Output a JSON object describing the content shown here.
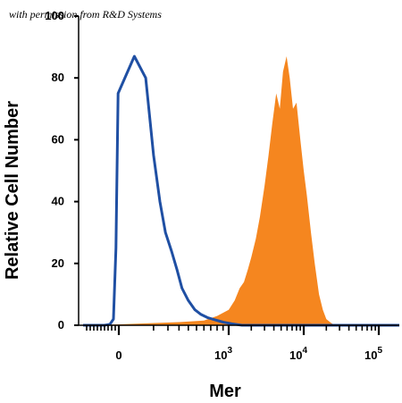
{
  "watermark": "with permission from R&D Systems",
  "chart_data": {
    "type": "area",
    "xlabel": "Mer",
    "ylabel": "Relative Cell Number",
    "ylim": [
      0,
      100
    ],
    "xscale": "biexponential",
    "xlim": [
      -1000,
      200000
    ],
    "y_ticks": [
      "0",
      "20",
      "40",
      "60",
      "80",
      "100"
    ],
    "x_ticks": [
      {
        "value": 0,
        "base": "0",
        "exp": ""
      },
      {
        "value": 1000,
        "base": "10",
        "exp": "3"
      },
      {
        "value": 10000,
        "base": "10",
        "exp": "4"
      },
      {
        "value": 100000,
        "base": "10",
        "exp": "5"
      }
    ],
    "grid": false,
    "legend": "none",
    "series": [
      {
        "style": "outline",
        "color": "#1f4fa3",
        "x": [
          -1000,
          -400,
          -250,
          -150,
          -80,
          -20,
          20,
          60,
          100,
          140,
          180,
          230,
          280,
          330,
          400,
          480,
          560,
          650,
          760,
          900,
          1100,
          1500,
          3000,
          10000,
          100000,
          200000
        ],
        "y": [
          0,
          0,
          0.3,
          2,
          25,
          75,
          87,
          80,
          55,
          40,
          30,
          24,
          18,
          12,
          8,
          5,
          3.5,
          2.5,
          1.8,
          1,
          0.5,
          0,
          0,
          0,
          0,
          0
        ]
      },
      {
        "style": "filled",
        "color": "#f5861f",
        "x": [
          -1000,
          0,
          300,
          600,
          800,
          1000,
          1200,
          1400,
          1600,
          1800,
          2000,
          2300,
          2600,
          3000,
          3400,
          3800,
          4300,
          4800,
          5300,
          5900,
          6500,
          7200,
          8000,
          9000,
          10000,
          11000,
          12500,
          14000,
          16000,
          18000,
          20000,
          23000,
          26000,
          100000,
          200000
        ],
        "y": [
          0,
          0.3,
          1,
          1.5,
          3,
          5,
          8,
          12,
          14,
          18,
          22,
          28,
          35,
          45,
          55,
          65,
          75,
          70,
          82,
          87,
          80,
          70,
          72,
          60,
          50,
          42,
          30,
          20,
          10,
          5,
          2,
          0.8,
          0,
          0,
          0
        ]
      }
    ]
  }
}
